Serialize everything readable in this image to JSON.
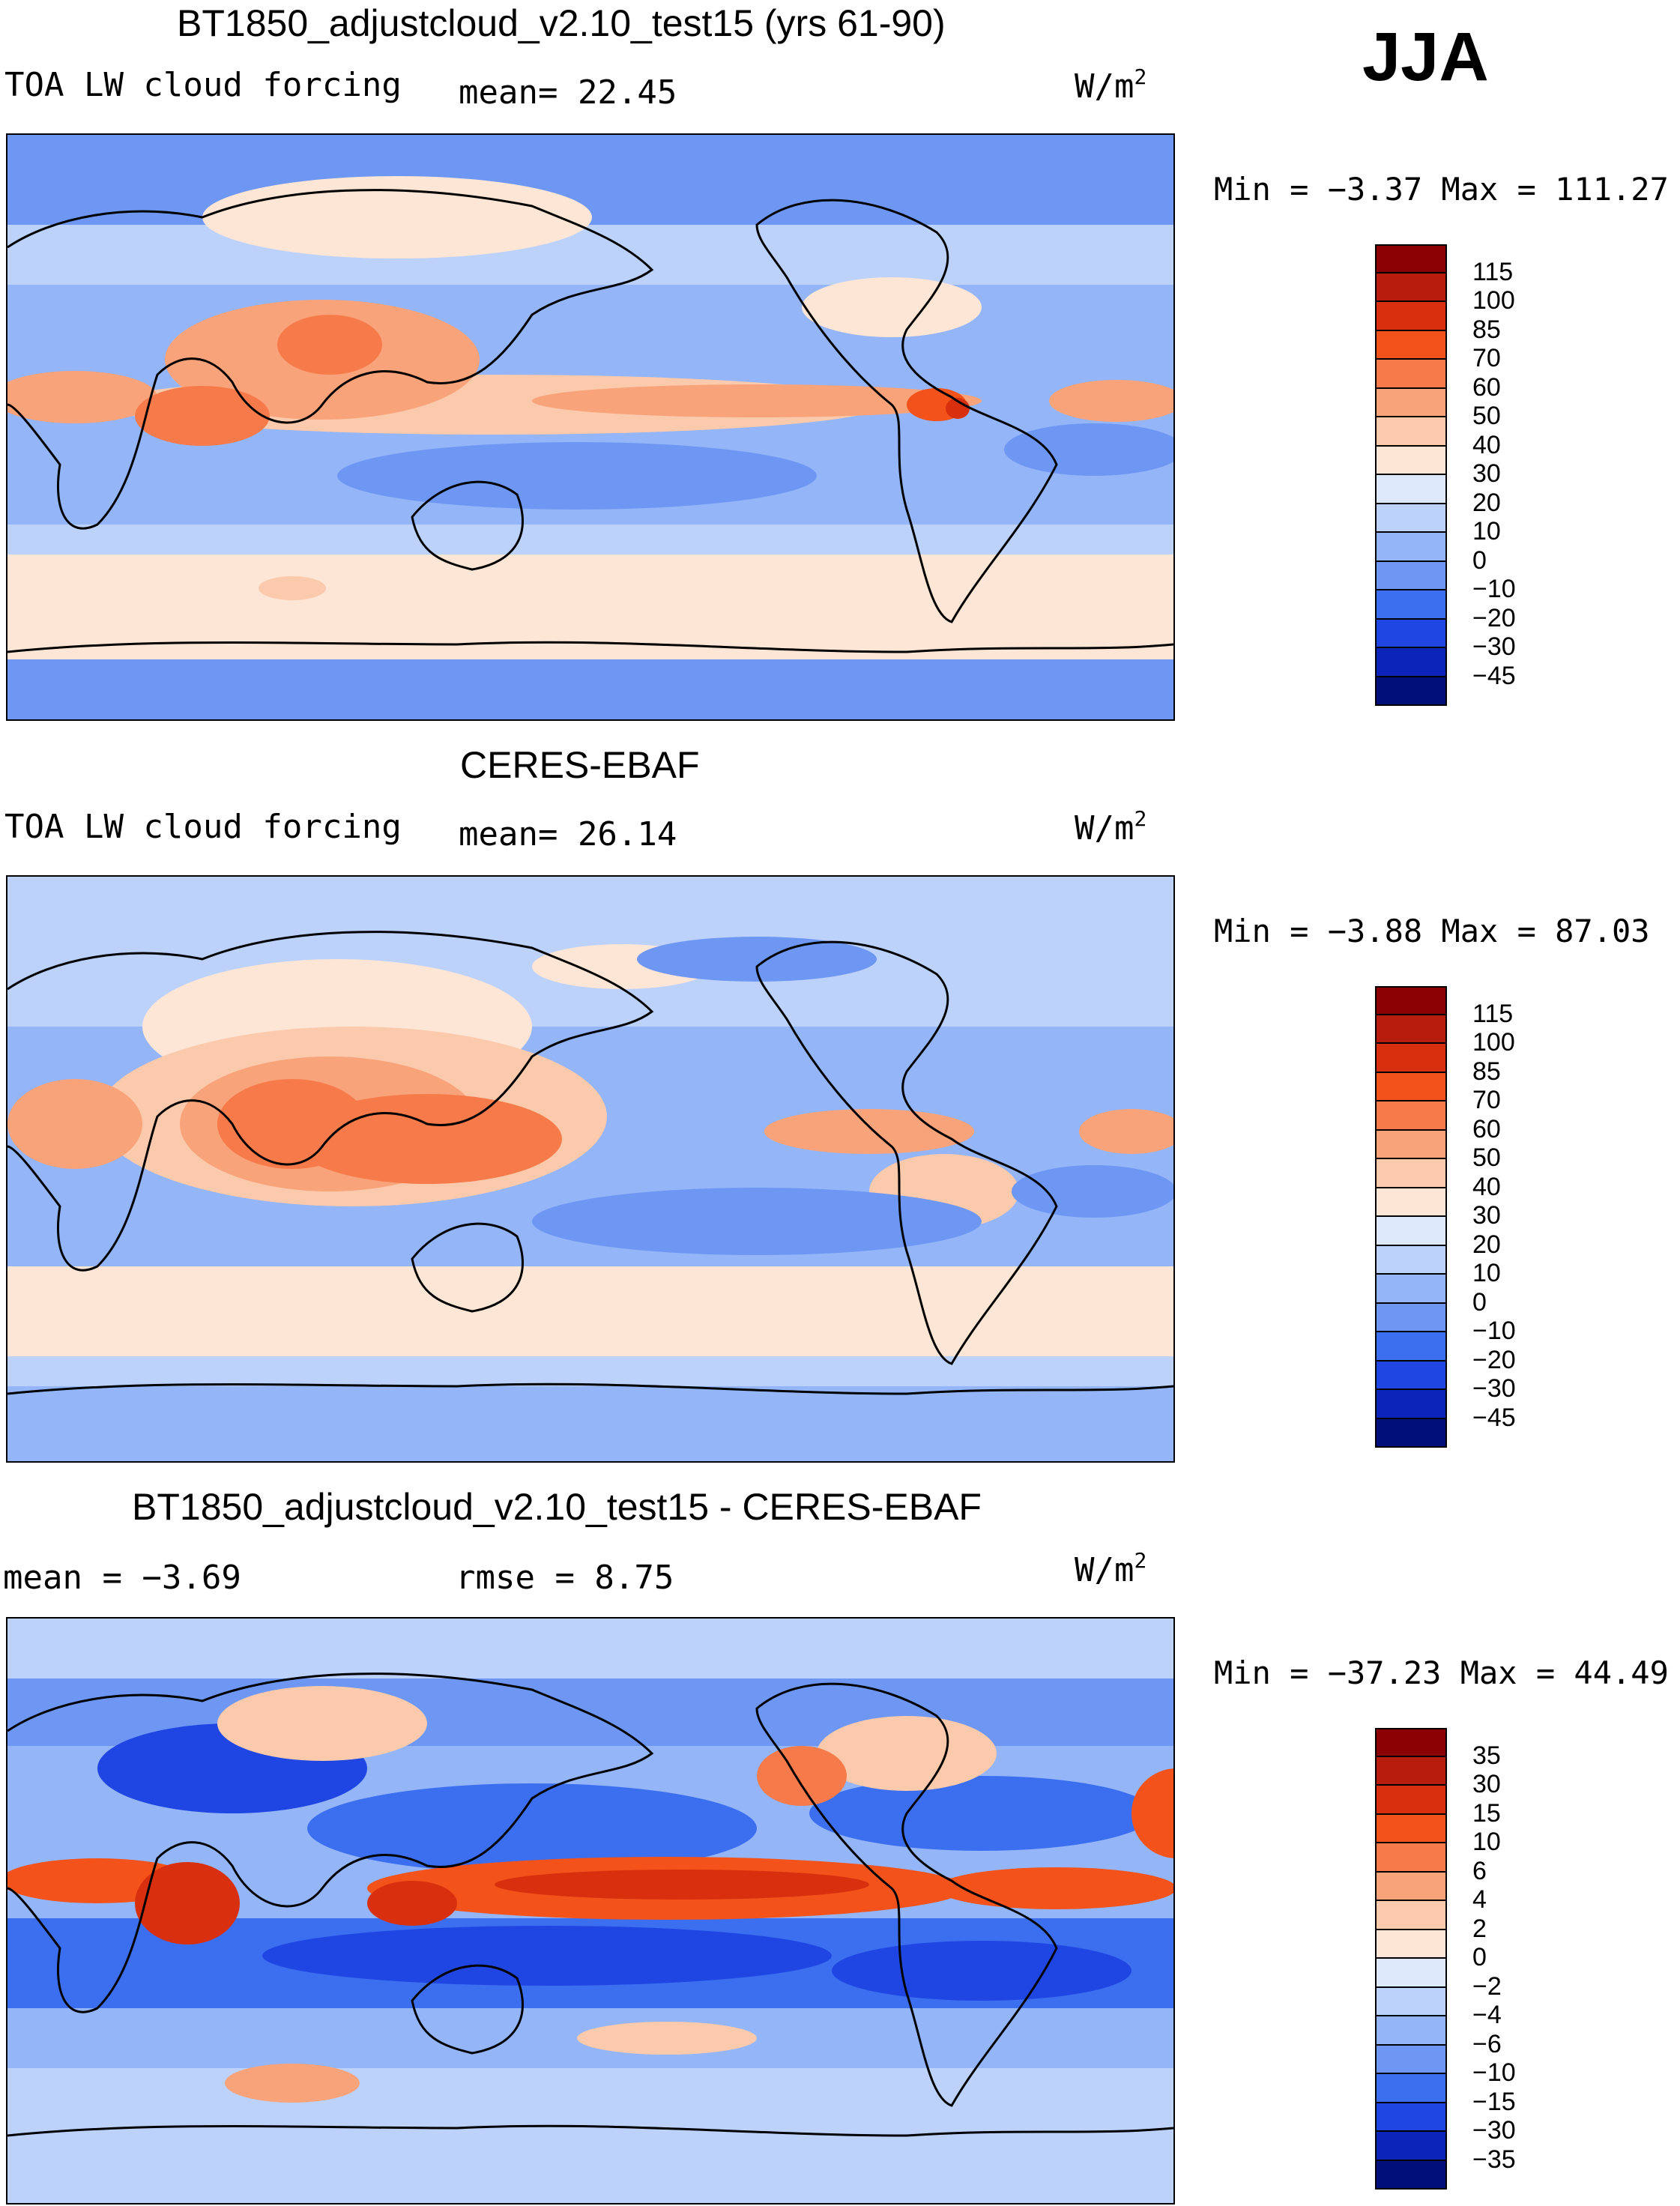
{
  "season": "JJA",
  "panels": [
    {
      "title": "BT1850_adjustcloud_v2.10_test15 (yrs 61-90)",
      "left_label": "TOA LW cloud forcing",
      "stat": "mean=  22.45",
      "unit": "W/m",
      "unit_sup": "2",
      "minmax": "Min =  −3.37 Max = 111.27",
      "colorbar_labels": [
        "115",
        "100",
        "85",
        "70",
        "60",
        "50",
        "40",
        "30",
        "20",
        "10",
        "0",
        "−10",
        "−20",
        "−30",
        "−45"
      ],
      "colorbar_colors": [
        "#8b0000",
        "#b71c0c",
        "#d8300e",
        "#f3521a",
        "#f77b4a",
        "#f9a37a",
        "#fbcaad",
        "#fde6d6",
        "#dde9fb",
        "#bcd2fa",
        "#94b5f7",
        "#6e97f3",
        "#3b6ff0",
        "#1f46e3",
        "#0c24b9",
        "#000f7a"
      ]
    },
    {
      "title": "CERES-EBAF",
      "left_label": "TOA LW cloud forcing",
      "stat": "mean=  26.14",
      "unit": "W/m",
      "unit_sup": "2",
      "minmax": "Min =  −3.88 Max =  87.03",
      "colorbar_labels": [
        "115",
        "100",
        "85",
        "70",
        "60",
        "50",
        "40",
        "30",
        "20",
        "10",
        "0",
        "−10",
        "−20",
        "−30",
        "−45"
      ],
      "colorbar_colors": [
        "#8b0000",
        "#b71c0c",
        "#d8300e",
        "#f3521a",
        "#f77b4a",
        "#f9a37a",
        "#fbcaad",
        "#fde6d6",
        "#dde9fb",
        "#bcd2fa",
        "#94b5f7",
        "#6e97f3",
        "#3b6ff0",
        "#1f46e3",
        "#0c24b9",
        "#000f7a"
      ]
    },
    {
      "title": "BT1850_adjustcloud_v2.10_test15 - CERES-EBAF",
      "left_label": "mean =  −3.69",
      "stat": "rmse =   8.75",
      "unit": "W/m",
      "unit_sup": "2",
      "minmax": "Min = −37.23 Max =  44.49",
      "colorbar_labels": [
        "35",
        "30",
        "15",
        "10",
        "6",
        "4",
        "2",
        "0",
        "−2",
        "−4",
        "−6",
        "−10",
        "−15",
        "−30",
        "−35"
      ],
      "colorbar_colors": [
        "#8b0000",
        "#b71c0c",
        "#d8300e",
        "#f3521a",
        "#f77b4a",
        "#f9a37a",
        "#fbcaad",
        "#fde6d6",
        "#dde9fb",
        "#bcd2fa",
        "#94b5f7",
        "#6e97f3",
        "#3b6ff0",
        "#1f46e3",
        "#0c24b9",
        "#000f7a"
      ]
    }
  ]
}
